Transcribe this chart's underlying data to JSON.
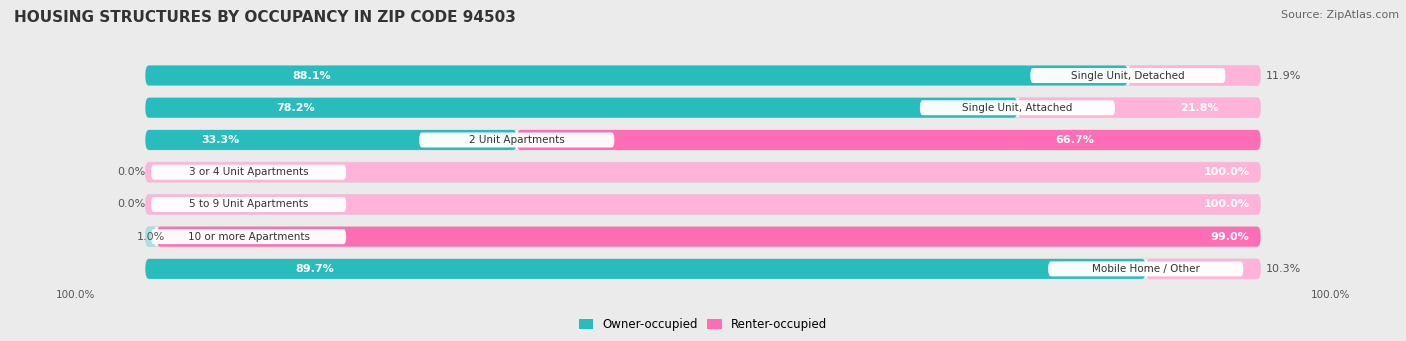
{
  "title": "HOUSING STRUCTURES BY OCCUPANCY IN ZIP CODE 94503",
  "source": "Source: ZipAtlas.com",
  "categories": [
    "Single Unit, Detached",
    "Single Unit, Attached",
    "2 Unit Apartments",
    "3 or 4 Unit Apartments",
    "5 to 9 Unit Apartments",
    "10 or more Apartments",
    "Mobile Home / Other"
  ],
  "owner_pct": [
    88.1,
    78.2,
    33.3,
    0.0,
    0.0,
    1.0,
    89.7
  ],
  "renter_pct": [
    11.9,
    21.8,
    66.7,
    100.0,
    100.0,
    99.0,
    10.3
  ],
  "owner_color": "#29BCBC",
  "renter_color": "#FF6EB4",
  "renter_color_light": "#FFB3D9",
  "owner_color_light": "#A8E0E0",
  "background_color": "#EBEBEB",
  "bar_bg_color": "#F7F7F7",
  "title_fontsize": 11,
  "source_fontsize": 8,
  "bar_height": 0.62,
  "bar_gap": 0.18,
  "legend_owner": "Owner-occupied",
  "legend_renter": "Renter-occupied",
  "label_fontsize": 8,
  "pct_fontsize": 8
}
